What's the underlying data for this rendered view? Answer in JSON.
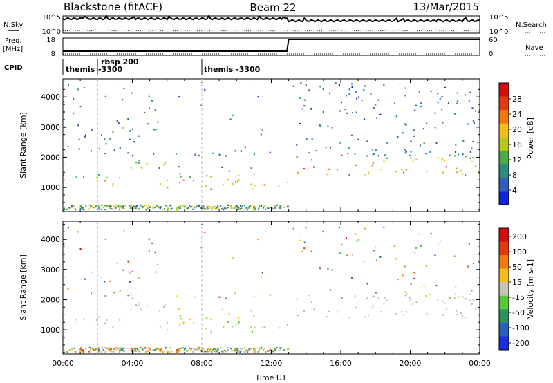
{
  "header": {
    "station": "Blackstone (fitACF)",
    "beam": "Beam 22",
    "date": "13/Mar/2015"
  },
  "noise_panel": {
    "left_label": "N.Sky",
    "right_label": "N.Search",
    "left_ticks": [
      "10^5",
      "10^0"
    ],
    "right_ticks": [
      "10^5",
      "10^0"
    ]
  },
  "freq_panel": {
    "left_label": "Freq.",
    "left_unit": "[MHz]",
    "right_label": "Nave",
    "left_ticks": [
      "18",
      "8"
    ],
    "right_ticks": [
      "60",
      "0"
    ]
  },
  "cpid": {
    "label": "CPID",
    "segments": [
      {
        "name": "themis",
        "start_hour": 0
      },
      {
        "name": "rbsp 200",
        "sub": "-3300",
        "start_hour": 2
      },
      {
        "name": "themis -3300",
        "start_hour": 8
      }
    ]
  },
  "chart_data": [
    {
      "type": "heatmap",
      "name": "power",
      "xlabel": "",
      "ylabel": "Slant Range [km]",
      "xlim": [
        0,
        24
      ],
      "ylim": [
        200,
        4600
      ],
      "yticks": [
        "1000",
        "2000",
        "3000",
        "4000"
      ],
      "colorbar_label": "Power [dB]",
      "colorbar_ticks": [
        "4",
        "8",
        "12",
        "16",
        "20",
        "24",
        "28"
      ],
      "colorbar_range": [
        0,
        30
      ],
      "colors": [
        "#1024d8",
        "#2e60b8",
        "#2f8b80",
        "#4bab48",
        "#b8c81a",
        "#f4be16",
        "#f07812",
        "#e23a10",
        "#d20f0f"
      ],
      "echo_regions": [
        {
          "t_start": 0,
          "t_end": 3.5,
          "range_start": 1000,
          "range_end": 1450,
          "peak_db": 24
        },
        {
          "t_start": 3.5,
          "t_end": 6,
          "range_start": 1450,
          "range_end": 2100,
          "peak_db": 16
        },
        {
          "t_start": 5.5,
          "t_end": 11.5,
          "range_start": 900,
          "range_end": 1700,
          "peak_db": 20
        },
        {
          "t_start": 11.5,
          "t_end": 13,
          "range_start": 1000,
          "range_end": 1300,
          "peak_db": 28
        },
        {
          "t_start": 13,
          "t_end": 24,
          "range_start": 1400,
          "range_end": 2200,
          "peak_db": 24
        },
        {
          "t_start": 3,
          "t_end": 4,
          "range_start": 2800,
          "range_end": 3100,
          "peak_db": 20
        }
      ]
    },
    {
      "type": "heatmap",
      "name": "velocity",
      "xlabel": "Time UT",
      "ylabel": "Slant Range [km]",
      "xlim": [
        0,
        24
      ],
      "ylim": [
        200,
        4600
      ],
      "xticks": [
        "00:00",
        "04:00",
        "08:00",
        "12:00",
        "16:00",
        "20:00",
        "00:00"
      ],
      "yticks": [
        "1000",
        "2000",
        "3000",
        "4000"
      ],
      "colorbar_label": "Velocity [m s-1]",
      "colorbar_ticks": [
        "200",
        "100",
        "50",
        "15",
        "-15",
        "-50",
        "-100",
        "-200"
      ],
      "colorbar_range": [
        -250,
        250
      ],
      "colors": [
        "#1a2ee0",
        "#2a62b8",
        "#2f9060",
        "#58c83a",
        "#c4c4b8",
        "#f4bc16",
        "#f07a12",
        "#e23a10",
        "#d20f0f"
      ],
      "ground_scatter_color": "#bdbdb4"
    }
  ]
}
